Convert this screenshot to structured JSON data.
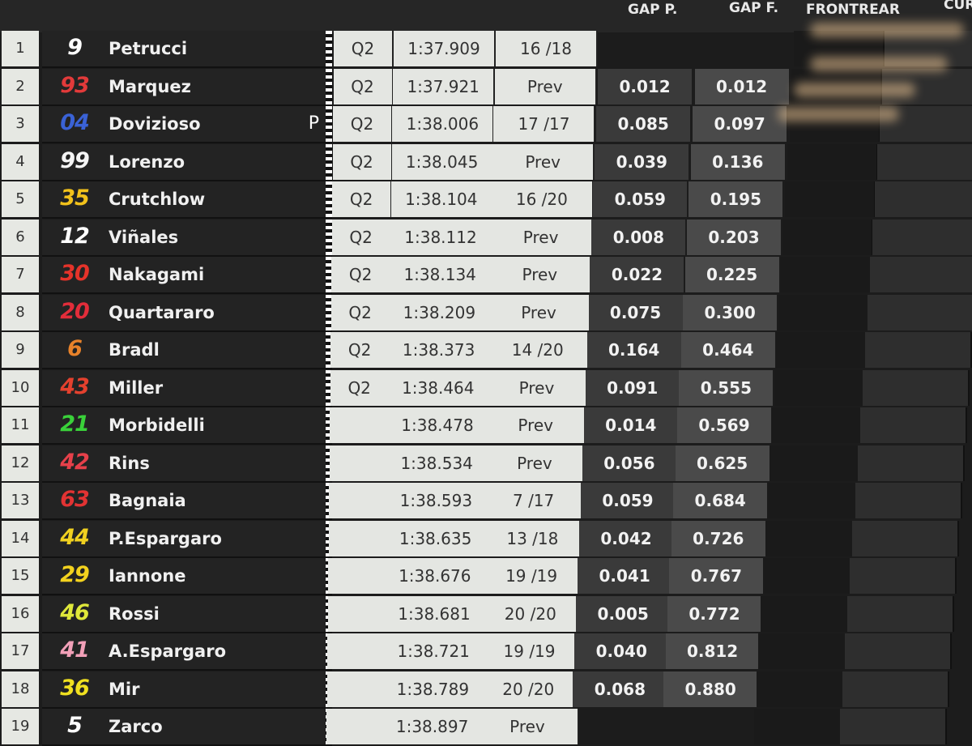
{
  "header": {
    "gap_p": "GAP P.",
    "gap_f": "GAP F.",
    "front_rear": "FRONTREAR",
    "cur": "CUR"
  },
  "rows": [
    {
      "pos": "1",
      "num": "9",
      "num_color": "#ffffff",
      "name": "Petrucci",
      "flag": "",
      "session": "Q2",
      "time": "1:37.909",
      "lap": "16 /18",
      "gap_p": "",
      "gap_f": ""
    },
    {
      "pos": "2",
      "num": "93",
      "num_color": "#e23a3a",
      "name": "Marquez",
      "flag": "",
      "session": "Q2",
      "time": "1:37.921",
      "lap": "Prev",
      "gap_p": "0.012",
      "gap_f": "0.012"
    },
    {
      "pos": "3",
      "num": "04",
      "num_color": "#3a62d6",
      "name": "Dovizioso",
      "flag": "P",
      "session": "Q2",
      "time": "1:38.006",
      "lap": "17 /17",
      "gap_p": "0.085",
      "gap_f": "0.097"
    },
    {
      "pos": "4",
      "num": "99",
      "num_color": "#f4f4f4",
      "name": "Lorenzo",
      "flag": "",
      "session": "Q2",
      "time": "1:38.045",
      "lap": "Prev",
      "gap_p": "0.039",
      "gap_f": "0.136"
    },
    {
      "pos": "5",
      "num": "35",
      "num_color": "#f2c21b",
      "name": "Crutchlow",
      "flag": "",
      "session": "Q2",
      "time": "1:38.104",
      "lap": "16 /20",
      "gap_p": "0.059",
      "gap_f": "0.195"
    },
    {
      "pos": "6",
      "num": "12",
      "num_color": "#ffffff",
      "name": "Viñales",
      "flag": "",
      "session": "Q2",
      "time": "1:38.112",
      "lap": "Prev",
      "gap_p": "0.008",
      "gap_f": "0.203"
    },
    {
      "pos": "7",
      "num": "30",
      "num_color": "#e5332a",
      "name": "Nakagami",
      "flag": "",
      "session": "Q2",
      "time": "1:38.134",
      "lap": "Prev",
      "gap_p": "0.022",
      "gap_f": "0.225"
    },
    {
      "pos": "8",
      "num": "20",
      "num_color": "#e22d3a",
      "name": "Quartararo",
      "flag": "",
      "session": "Q2",
      "time": "1:38.209",
      "lap": "Prev",
      "gap_p": "0.075",
      "gap_f": "0.300"
    },
    {
      "pos": "9",
      "num": "6",
      "num_color": "#e8822a",
      "name": "Bradl",
      "flag": "",
      "session": "Q2",
      "time": "1:38.373",
      "lap": "14 /20",
      "gap_p": "0.164",
      "gap_f": "0.464"
    },
    {
      "pos": "10",
      "num": "43",
      "num_color": "#e4412e",
      "name": "Miller",
      "flag": "",
      "session": "Q2",
      "time": "1:38.464",
      "lap": "Prev",
      "gap_p": "0.091",
      "gap_f": "0.555"
    },
    {
      "pos": "11",
      "num": "21",
      "num_color": "#3ad13a",
      "name": "Morbidelli",
      "flag": "",
      "session": "",
      "time": "1:38.478",
      "lap": "Prev",
      "gap_p": "0.014",
      "gap_f": "0.569"
    },
    {
      "pos": "12",
      "num": "42",
      "num_color": "#e6404a",
      "name": "Rins",
      "flag": "",
      "session": "",
      "time": "1:38.534",
      "lap": "Prev",
      "gap_p": "0.056",
      "gap_f": "0.625"
    },
    {
      "pos": "13",
      "num": "63",
      "num_color": "#e23333",
      "name": "Bagnaia",
      "flag": "",
      "session": "",
      "time": "1:38.593",
      "lap": "7 /17",
      "gap_p": "0.059",
      "gap_f": "0.684"
    },
    {
      "pos": "14",
      "num": "44",
      "num_color": "#f0d020",
      "name": "P.Espargaro",
      "flag": "",
      "session": "",
      "time": "1:38.635",
      "lap": "13 /18",
      "gap_p": "0.042",
      "gap_f": "0.726"
    },
    {
      "pos": "15",
      "num": "29",
      "num_color": "#f3d21e",
      "name": "Iannone",
      "flag": "",
      "session": "",
      "time": "1:38.676",
      "lap": "19 /19",
      "gap_p": "0.041",
      "gap_f": "0.767"
    },
    {
      "pos": "16",
      "num": "46",
      "num_color": "#dfe83a",
      "name": "Rossi",
      "flag": "",
      "session": "",
      "time": "1:38.681",
      "lap": "20 /20",
      "gap_p": "0.005",
      "gap_f": "0.772"
    },
    {
      "pos": "17",
      "num": "41",
      "num_color": "#f2a0b8",
      "name": "A.Espargaro",
      "flag": "",
      "session": "",
      "time": "1:38.721",
      "lap": "19 /19",
      "gap_p": "0.040",
      "gap_f": "0.812"
    },
    {
      "pos": "18",
      "num": "36",
      "num_color": "#f0e020",
      "name": "Mir",
      "flag": "",
      "session": "",
      "time": "1:38.789",
      "lap": "20 /20",
      "gap_p": "0.068",
      "gap_f": "0.880"
    },
    {
      "pos": "19",
      "num": "5",
      "num_color": "#ffffff",
      "name": "Zarco",
      "flag": "",
      "session": "",
      "time": "1:38.897",
      "lap": "Prev",
      "gap_p": "",
      "gap_f": ""
    }
  ]
}
